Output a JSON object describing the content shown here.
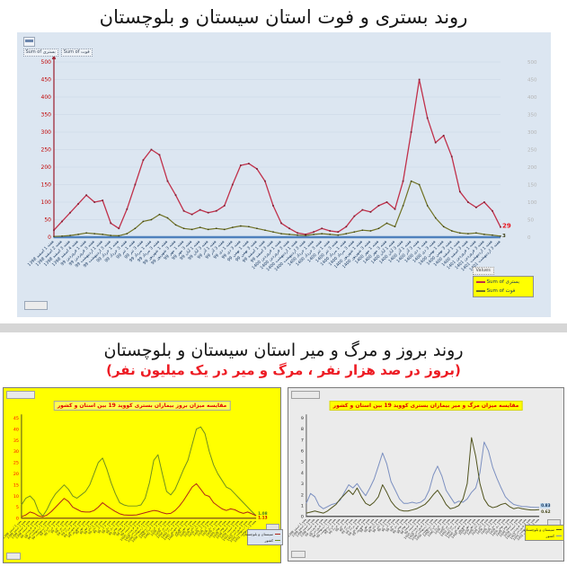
{
  "titles": {
    "top": "روند بستری و فوت استان سیستان و بلوچستان",
    "section2": "روند بروز و مرگ و میر استان سیستان و بلوچستان",
    "section2_note": "(بروز در صد هزار نفر ، مرگ و میر در یک میلیون نفر)"
  },
  "main_chart": {
    "field_buttons": [
      "Sum of بستری",
      "Sum of فوت"
    ],
    "legend_header": "Values",
    "legend": [
      {
        "label": "Sum of بستری",
        "color": "#c0304a"
      },
      {
        "label": "Sum of فوت",
        "color": "#6f7123"
      }
    ]
  },
  "weeks": [
    "هفته 1 اسفند 1398",
    "هفته 2 اسفند 1398",
    "هفته 3 اسفند 1398",
    "هفته 4 اسفند 1398",
    "هفته 1 فروردین 99",
    "هفته 3 فروردین 99",
    "هفته 1 اردیبهشت 99",
    "هفته 3 اردیبهشت 99",
    "هفته 1 خرداد 99",
    "هفته 3 خرداد 99",
    "هفته 1 تیر 99",
    "هفته 3 تیر 99",
    "هفته 1 مرداد 99",
    "هفته 3 مرداد 99",
    "هفته 1 شهریور 99",
    "هفته 3 شهریور 99",
    "هفته 1 مهر 99",
    "هفته 3 مهر 99",
    "هفته 1 آبان 99",
    "هفته 3 آبان 99",
    "هفته 1 آذر 99",
    "هفته 3 آذر 99",
    "هفته 1 دی 99",
    "هفته 3 دی 99",
    "هفته 1 بهمن 99",
    "هفته 3 بهمن 99",
    "هفته 1 اسفند 99",
    "هفته 3 اسفند 99",
    "هفته 1 فروردین 1400",
    "هفته 3 فروردین 1400",
    "هفته 1 اردیبهشت 1400",
    "هفته 3 اردیبهشت 1400",
    "هفته 1 خرداد 1400",
    "هفته 3 خرداد 1400",
    "هفته 1 تیر 1400",
    "هفته 3 تیر 1400",
    "هفته 1 مرداد 1400",
    "هفته 3 مرداد 1400",
    "هفته 1 شهریور 1400",
    "هفته 3 شهریور 1400",
    "هفته 1 مهر 1400",
    "هفته 3 مهر 1400",
    "هفته 1 آبان 1400",
    "هفته 3 آبان 1400",
    "هفته 1 آذر 1400",
    "هفته 3 آذر 1400",
    "هفته 1 دی 1400",
    "هفته 3 دی 1400",
    "هفته 1 بهمن 1400",
    "هفته 3 بهمن 1400",
    "هفته 1 اسفند 1400",
    "هفته 3 اسفند 1400",
    "هفته 1 فروردین 1401",
    "هفته 3 فروردین 1401",
    "هفته 1 اردیبهشت 1401",
    "هفته 3 اردیبهشت 1401"
  ],
  "chart_data": [
    {
      "id": "hospitalization-death",
      "type": "line",
      "title": "روند بستری و فوت استان سیستان و بلوچستان",
      "background": "#dce6f1",
      "ymax": 500,
      "yticks": [
        0,
        50,
        100,
        150,
        200,
        250,
        300,
        350,
        400,
        450,
        500
      ],
      "right_axis_ticks": [
        0,
        50,
        100,
        150,
        200,
        250,
        300,
        350,
        400,
        450,
        500
      ],
      "grid": true,
      "legend_position": "bottom-right",
      "series": [
        {
          "name": "Sum of بستری",
          "color": "#c0304a",
          "end_label": "29",
          "values": [
            20,
            45,
            70,
            95,
            120,
            100,
            105,
            40,
            25,
            80,
            150,
            220,
            250,
            235,
            160,
            120,
            75,
            65,
            78,
            70,
            75,
            90,
            150,
            205,
            210,
            195,
            160,
            90,
            40,
            25,
            12,
            8,
            15,
            25,
            18,
            15,
            30,
            60,
            78,
            72,
            90,
            100,
            80,
            160,
            300,
            450,
            340,
            270,
            290,
            230,
            130,
            100,
            85,
            100,
            75,
            29
          ]
        },
        {
          "name": "Sum of فوت",
          "color": "#6f7123",
          "end_label": "3",
          "values": [
            2,
            3,
            5,
            8,
            12,
            10,
            8,
            5,
            4,
            10,
            25,
            45,
            50,
            65,
            55,
            35,
            25,
            22,
            28,
            22,
            25,
            22,
            28,
            32,
            30,
            25,
            20,
            15,
            10,
            8,
            6,
            5,
            8,
            10,
            8,
            6,
            10,
            15,
            20,
            18,
            25,
            40,
            30,
            90,
            160,
            150,
            90,
            55,
            30,
            18,
            12,
            10,
            12,
            8,
            6,
            3
          ]
        }
      ]
    },
    {
      "id": "incidence-comparison",
      "type": "line",
      "title": "مقایسه میزان بروز بیماران بستری کووید 19 بین استان و کشور",
      "background": "#ffff00",
      "ymax": 45,
      "yticks": [
        0,
        5,
        10,
        15,
        20,
        25,
        30,
        35,
        40,
        45
      ],
      "grid": false,
      "legend_position": "bottom-right",
      "legend": [
        {
          "label": "سیستان و بلوچستان",
          "color": "#b02418"
        },
        {
          "label": "کشور",
          "color": "#6f8f1f"
        }
      ],
      "series": [
        {
          "name": "کشور",
          "color": "#6f8f1f",
          "end_label": "1.08",
          "values": [
            6,
            9,
            10,
            8,
            3,
            1,
            4,
            8,
            11,
            13,
            15,
            13,
            10,
            9,
            10.5,
            12,
            15,
            20,
            25,
            27,
            22,
            16,
            11,
            7,
            6,
            5.5,
            5.5,
            5.5,
            6,
            9,
            16,
            26,
            28.5,
            20,
            12,
            10.5,
            13,
            17.5,
            22,
            26,
            33,
            40,
            41,
            38,
            30,
            24,
            20,
            17,
            14,
            13,
            11,
            9,
            7,
            5,
            3,
            1.08
          ]
        },
        {
          "name": "سیستان و بلوچستان",
          "color": "#b02418",
          "end_label": "1.13",
          "values": [
            0.7,
            1.5,
            2.8,
            2.2,
            1,
            0.7,
            1.5,
            3,
            5,
            7,
            8.9,
            7.5,
            5,
            4,
            3,
            2.8,
            2.8,
            3.5,
            5,
            7,
            5.5,
            4.2,
            3,
            2,
            1.5,
            1.4,
            1.4,
            1.5,
            2,
            2.5,
            3,
            3.5,
            3.2,
            2.5,
            2,
            2.2,
            3.5,
            5.5,
            8,
            11,
            14,
            15.5,
            13,
            10.5,
            9.8,
            7,
            5.6,
            4.2,
            3.5,
            4.2,
            3.8,
            2.8,
            2.2,
            2.8,
            2,
            1.13
          ]
        }
      ]
    },
    {
      "id": "mortality-comparison",
      "type": "line",
      "title": "مقایسه میزان مرگ و میر بیماران بستری کووید 19 بین استان و کشور",
      "background": "#ebebeb",
      "ymax": 9,
      "yticks": [
        0,
        1,
        2,
        3,
        4,
        5,
        6,
        7,
        8,
        9
      ],
      "grid": false,
      "legend_position": "bottom-right",
      "legend": [
        {
          "label": "سیستان و بلوچستان",
          "color": "#50531d"
        },
        {
          "label": "کشور",
          "color": "#7b8fc0"
        }
      ],
      "series": [
        {
          "name": "کشور",
          "color": "#7b8fc0",
          "end_label": "0.83",
          "values": [
            1.2,
            2.1,
            1.8,
            1.0,
            0.7,
            0.9,
            1.1,
            1.2,
            1.5,
            2.2,
            2.9,
            2.6,
            3.0,
            2.4,
            1.9,
            2.6,
            3.4,
            4.6,
            5.8,
            4.8,
            3.2,
            2.4,
            1.6,
            1.2,
            1.2,
            1.3,
            1.2,
            1.3,
            1.6,
            2.4,
            3.8,
            4.6,
            3.7,
            2.4,
            1.8,
            1.2,
            1.4,
            1.3,
            1.6,
            2.2,
            2.6,
            4.0,
            6.8,
            6.0,
            4.5,
            3.5,
            2.6,
            1.8,
            1.4,
            1.1,
            1.0,
            0.9,
            0.9,
            0.85,
            0.83,
            0.83
          ]
        },
        {
          "name": "سیستان و بلوچستان",
          "color": "#50531d",
          "end_label": "0.62",
          "values": [
            0.3,
            0.4,
            0.5,
            0.4,
            0.3,
            0.5,
            0.8,
            1.1,
            1.6,
            2.0,
            2.4,
            2.0,
            2.6,
            1.8,
            1.2,
            1.0,
            1.3,
            1.8,
            2.9,
            2.2,
            1.4,
            0.9,
            0.6,
            0.5,
            0.5,
            0.6,
            0.7,
            0.9,
            1.1,
            1.5,
            2.0,
            2.4,
            1.8,
            1.1,
            0.7,
            0.8,
            1.0,
            1.6,
            3.0,
            7.2,
            5.5,
            3.0,
            1.6,
            1.0,
            0.8,
            0.9,
            1.1,
            1.2,
            0.9,
            0.7,
            0.8,
            0.7,
            0.65,
            0.6,
            0.6,
            0.62
          ]
        }
      ]
    }
  ],
  "colors": {
    "hospitalized_line": "#c0304a",
    "death_line": "#6f7123",
    "main_axis_labels": "#c00000",
    "right_axis_labels": "#b4b4b4",
    "x_axis_labels": "#17375e",
    "incidence_bg": "#ffff00",
    "subtitle_red": "#ed1c24",
    "country_incidence": "#6f8f1f",
    "province_incidence": "#b02418",
    "country_mortality": "#7b8fc0",
    "province_mortality": "#50531d"
  }
}
